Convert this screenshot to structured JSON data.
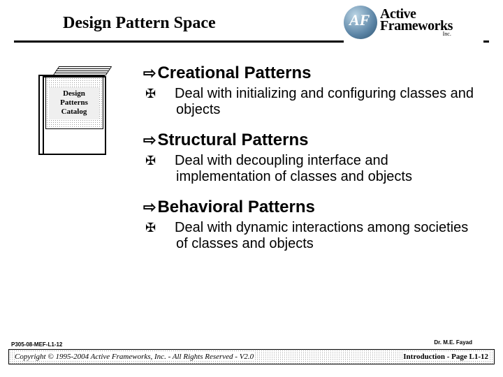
{
  "header": {
    "title": "Design Pattern Space",
    "logo": {
      "mark": "AF",
      "line1": "Active",
      "line2": "Frameworks",
      "suffix": "Inc."
    }
  },
  "book": {
    "line1": "Design",
    "line2": "Patterns",
    "line3": "Catalog"
  },
  "sections": [
    {
      "heading": "Creational Patterns",
      "body": "Deal with initializing and configuring classes and objects"
    },
    {
      "heading": "Structural Patterns",
      "body": "Deal with decoupling interface and implementation of classes and objects"
    },
    {
      "heading": "Behavioral Patterns",
      "body": "Deal with dynamic interactions among societies of classes and objects"
    }
  ],
  "bullets": {
    "arrow": "⇨",
    "maltese": "✠"
  },
  "footer": {
    "code": "P305-08-MEF-L1-12",
    "copyright": "Copyright © 1995-2004 Active Frameworks, Inc.  -  All Rights Reserved - V2.0",
    "page": "Introduction - Page L1-12",
    "author": "Dr. M.E. Fayad"
  }
}
